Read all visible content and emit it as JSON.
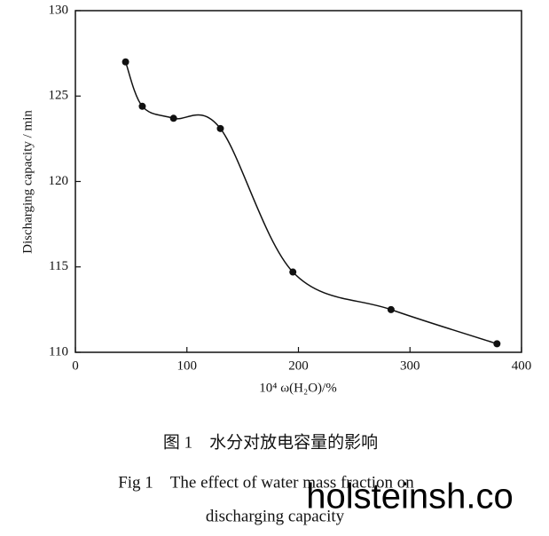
{
  "chart_data": {
    "type": "line",
    "x_label": "10⁴ ω(H₂O)/%",
    "y_label": "Discharging capacity / min",
    "caption_cn": "图 1　水分对放电容量的影响",
    "caption_en_1": "Fig 1　The effect of water mass fraction on",
    "caption_en_2": "discharging capacity",
    "watermark": "holsteinsh.co",
    "x": [
      45,
      60,
      88,
      130,
      195,
      283,
      378
    ],
    "series": [
      {
        "color": "#111111",
        "values": [
          127,
          124.4,
          123.7,
          123.1,
          114.7,
          112.5,
          110.5
        ]
      }
    ],
    "xlim": [
      0,
      400
    ],
    "xticks": [
      0,
      100,
      200,
      300,
      400
    ],
    "ylim": [
      110,
      130
    ],
    "yticks": [
      110,
      115,
      120,
      125,
      130
    ]
  }
}
